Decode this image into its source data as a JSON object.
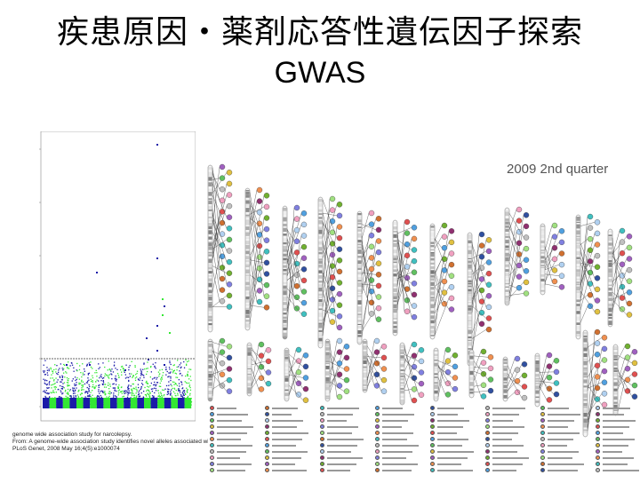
{
  "slide": {
    "title_line1": "疾患原因・薬剤応答性遺伝因子探索",
    "title_line2": "GWAS"
  },
  "manhattan": {
    "caption": [
      "genome wide association study for narcolepsy.",
      "From: A genome-wide association study identifies novel alleles associated with hair color and skin pigmentation",
      "PLoS Genet, 2008 May 16;4(5):e1000074"
    ]
  },
  "catalog": {
    "quarter_label": "2009 2nd quarter"
  },
  "colors": {
    "manhattan_blue": "#1a1aa8",
    "manhattan_green": "#33e833",
    "threshold_line": "#333333"
  }
}
